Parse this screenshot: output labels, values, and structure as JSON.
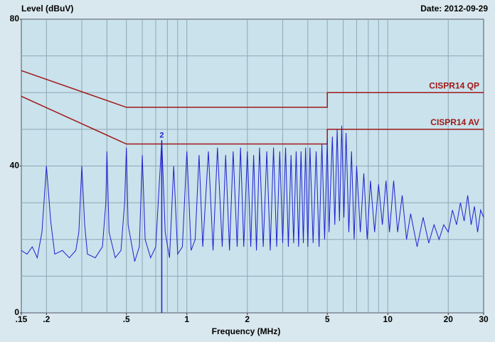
{
  "chart_data": {
    "type": "line",
    "title": "Level (dBuV)",
    "subtitle": "Date: 2012-09-29",
    "x_label": "Frequency (MHz)",
    "xscale": "log",
    "xlim": [
      0.15,
      30
    ],
    "ylim": [
      0,
      80
    ],
    "xticks": [
      {
        "value": 0.15,
        "label": ".15"
      },
      {
        "value": 0.2,
        "label": ".2"
      },
      {
        "value": 0.5,
        "label": ".5"
      },
      1,
      2,
      5,
      10,
      20,
      30
    ],
    "yticks": [
      0,
      40,
      80
    ],
    "xgrid": [
      0.2,
      0.3,
      0.4,
      0.5,
      0.6,
      0.7,
      0.8,
      0.9,
      1,
      2,
      3,
      4,
      5,
      6,
      7,
      8,
      9,
      10,
      20
    ],
    "ygrid": [
      10,
      20,
      30,
      40,
      50,
      60,
      70
    ],
    "grid": true,
    "series": [
      {
        "name": "CISPR14 QP",
        "color": "#a01818",
        "x": [
          0.15,
          0.5,
          5,
          5,
          30
        ],
        "values": [
          66,
          56,
          56,
          60,
          60
        ]
      },
      {
        "name": "CISPR14 AV",
        "color": "#a01818",
        "x": [
          0.15,
          0.5,
          5,
          5,
          30
        ],
        "values": [
          59,
          46,
          46,
          50,
          50
        ]
      },
      {
        "color": "#1f1fd0",
        "x": [
          0.15,
          0.16,
          0.17,
          0.18,
          0.19,
          0.2,
          0.21,
          0.22,
          0.24,
          0.26,
          0.28,
          0.29,
          0.3,
          0.31,
          0.32,
          0.35,
          0.38,
          0.395,
          0.4,
          0.41,
          0.44,
          0.47,
          0.49,
          0.5,
          0.51,
          0.55,
          0.58,
          0.6,
          0.62,
          0.66,
          0.7,
          0.72,
          0.75,
          0.78,
          0.82,
          0.86,
          0.9,
          0.95,
          1.0,
          1.05,
          1.1,
          1.15,
          1.2,
          1.28,
          1.35,
          1.42,
          1.5,
          1.56,
          1.63,
          1.7,
          1.78,
          1.85,
          1.92,
          2.0,
          2.08,
          2.15,
          2.22,
          2.3,
          2.4,
          2.5,
          2.6,
          2.7,
          2.8,
          2.9,
          3.0,
          3.1,
          3.2,
          3.3,
          3.4,
          3.5,
          3.6,
          3.7,
          3.8,
          3.9,
          4.0,
          4.1,
          4.25,
          4.4,
          4.55,
          4.7,
          4.85,
          5.0,
          5.1,
          5.3,
          5.45,
          5.6,
          5.75,
          5.9,
          6.05,
          6.2,
          6.4,
          6.6,
          6.8,
          7.0,
          7.3,
          7.6,
          7.9,
          8.2,
          8.6,
          9.0,
          9.4,
          9.8,
          10.2,
          10.7,
          11.2,
          11.8,
          12.4,
          13,
          14,
          15,
          16,
          17,
          18,
          19,
          20,
          21,
          22,
          23,
          24,
          25,
          26,
          27,
          28,
          29,
          30
        ],
        "values": [
          17,
          16,
          18,
          15,
          22,
          40,
          25,
          16,
          17,
          15,
          17,
          22,
          40,
          24,
          16,
          15,
          18,
          30,
          44,
          22,
          15,
          17,
          30,
          45,
          24,
          14,
          18,
          43,
          20,
          15,
          18,
          30,
          47,
          22,
          15,
          40,
          16,
          18,
          44,
          17,
          20,
          43,
          18,
          44,
          17,
          45,
          18,
          43,
          17,
          44,
          18,
          45,
          18,
          44,
          18,
          43,
          17,
          45,
          18,
          44,
          17,
          45,
          18,
          44,
          19,
          45,
          18,
          43,
          19,
          44,
          18,
          44,
          19,
          45,
          18,
          45,
          19,
          44,
          18,
          46,
          20,
          47,
          22,
          48,
          24,
          50,
          25,
          51,
          26,
          49,
          22,
          44,
          20,
          40,
          22,
          38,
          20,
          36,
          22,
          35,
          24,
          36,
          22,
          36,
          22,
          32,
          20,
          27,
          18,
          26,
          19,
          24,
          20,
          24,
          22,
          28,
          24,
          30,
          25,
          32,
          24,
          29,
          22,
          28,
          26
        ]
      }
    ],
    "annotations": [
      {
        "x": 0.75,
        "y": 47,
        "label": "2"
      }
    ]
  }
}
